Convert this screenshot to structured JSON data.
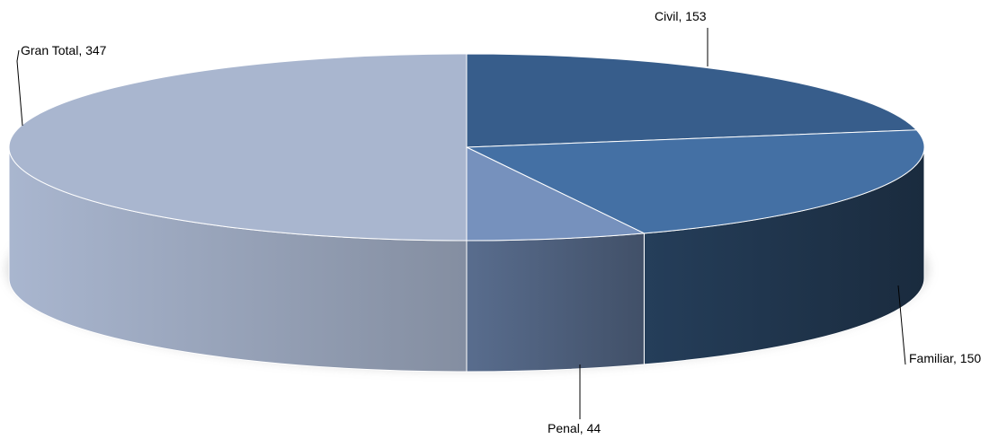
{
  "chart_data": {
    "type": "pie",
    "three_d": true,
    "title": "",
    "slices": [
      {
        "label": "Civil",
        "value": 153,
        "display": "Civil, 153",
        "color": "#375D8B"
      },
      {
        "label": "Familiar",
        "value": 150,
        "display": "Familiar, 150",
        "color": "#4470A4"
      },
      {
        "label": "Penal",
        "value": 44,
        "display": "Penal, 44",
        "color": "#7691BD"
      },
      {
        "label": "Gran Total",
        "value": 347,
        "display": "Gran Total, 347",
        "color": "#A9B6CF"
      }
    ],
    "legend": "none",
    "data_labels": "outside with leader lines"
  }
}
